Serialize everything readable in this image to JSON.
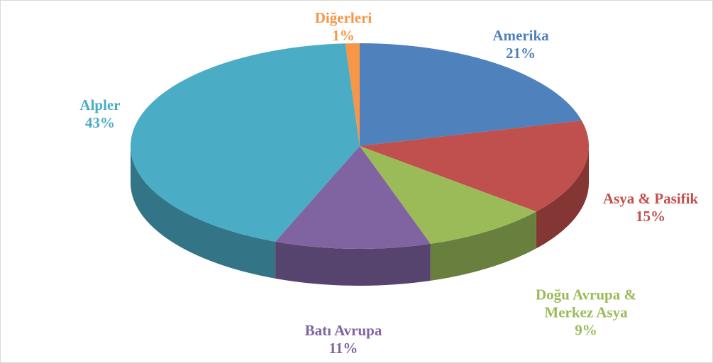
{
  "chart_data": {
    "type": "pie3d",
    "categories": [
      "Amerika",
      "Asya & Pasifik",
      "Doğu Avrupa & Merkez Asya",
      "Batı Avrupa",
      "Alpler",
      "Diğerleri"
    ],
    "values": [
      21,
      15,
      9,
      11,
      43,
      1
    ],
    "value_labels": [
      "21%",
      "15%",
      "9%",
      "11%",
      "43%",
      "1%"
    ],
    "colors": [
      "#4f81bd",
      "#c0504d",
      "#9bbb59",
      "#8064a2",
      "#4bacc6",
      "#f79646"
    ]
  }
}
